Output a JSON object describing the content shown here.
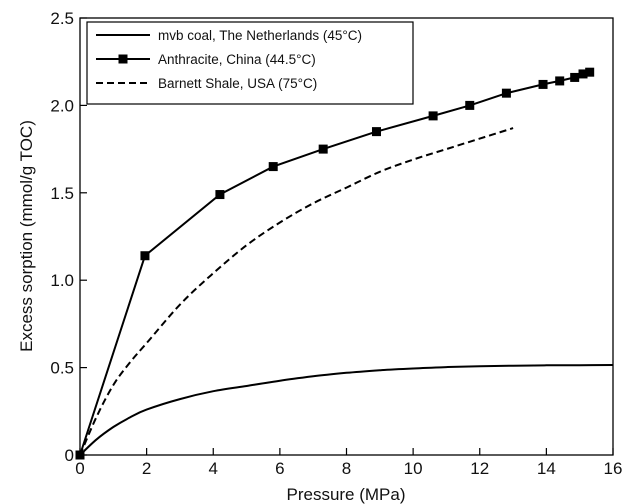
{
  "chart_data": {
    "type": "line",
    "title": "",
    "xlabel": "Pressure (MPa)",
    "ylabel": "Excess sorption (mmol/g TOC)",
    "xlim": [
      0,
      16
    ],
    "ylim": [
      0,
      2.5
    ],
    "xticks": [
      "0",
      "2",
      "4",
      "6",
      "8",
      "10",
      "12",
      "14",
      "16"
    ],
    "yticks": [
      "0",
      "0.5",
      "1.0",
      "1.5",
      "2.0",
      "2.5"
    ],
    "grid": false,
    "legend_position": "top-left",
    "series": [
      {
        "name": "mvb coal, The Netherlands (45°C)",
        "style": "solid",
        "markers": false,
        "color": "#000000",
        "x": [
          0,
          0.5,
          1,
          1.5,
          2,
          3,
          4,
          5,
          6,
          7,
          8,
          9,
          10,
          11,
          12,
          13,
          14,
          15,
          16
        ],
        "y": [
          0,
          0.09,
          0.16,
          0.215,
          0.26,
          0.32,
          0.365,
          0.395,
          0.425,
          0.45,
          0.47,
          0.485,
          0.495,
          0.503,
          0.508,
          0.511,
          0.513,
          0.514,
          0.515
        ]
      },
      {
        "name": "Anthracite, China (44.5°C)",
        "style": "solid",
        "markers": true,
        "color": "#000000",
        "x": [
          0,
          1.95,
          4.2,
          5.8,
          7.3,
          8.9,
          10.6,
          11.7,
          12.8,
          13.9,
          14.4,
          14.85,
          15.1,
          15.3
        ],
        "y": [
          0,
          1.14,
          1.49,
          1.65,
          1.75,
          1.85,
          1.94,
          2.0,
          2.07,
          2.12,
          2.14,
          2.16,
          2.18,
          2.19
        ]
      },
      {
        "name": "Barnett Shale, USA (75°C)",
        "style": "dashed",
        "markers": false,
        "color": "#000000",
        "x": [
          0,
          0.5,
          1,
          1.5,
          2,
          3,
          4,
          5,
          6,
          7,
          8,
          9,
          10,
          11,
          12,
          13
        ],
        "y": [
          0,
          0.22,
          0.4,
          0.53,
          0.64,
          0.86,
          1.04,
          1.2,
          1.33,
          1.44,
          1.53,
          1.62,
          1.69,
          1.75,
          1.81,
          1.87
        ]
      }
    ]
  }
}
